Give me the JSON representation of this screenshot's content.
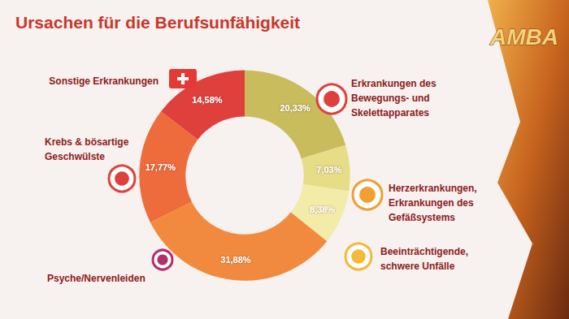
{
  "chart_data": {
    "type": "pie",
    "title": "Ursachen für die Berufsunfähigkeit",
    "annotations": [
      "AMBA"
    ],
    "categories": [
      "Erkrankungen des\nBewegungs- und\nSkelettapparates",
      "Herzerkrankungen,\nErkrankungen des\nGefäßsystems",
      "Beeinträchtigende,\nschwere Unfälle",
      "Psyche/Nervenleiden",
      "Krebs & bösartige\nGeschwülste",
      "Sonstige Erkrankungen"
    ],
    "values": [
      20.33,
      7.03,
      8.38,
      31.88,
      17.77,
      14.58
    ],
    "value_labels": [
      "20,33%",
      "7,03%",
      "8,38%",
      "31,88%",
      "17,77%",
      "14,58%"
    ],
    "colors": [
      "#c8bc5c",
      "#e6dd86",
      "#f3eca8",
      "#f18a3e",
      "#ee6b3b",
      "#e0403c"
    ],
    "data_labels": true
  }
}
